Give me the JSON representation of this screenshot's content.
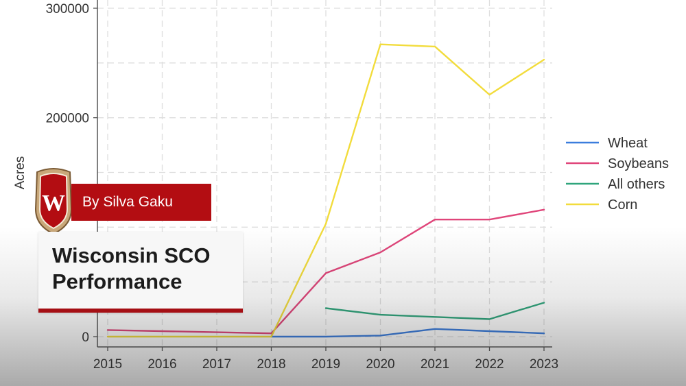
{
  "chart_data": {
    "type": "line",
    "x": [
      2015,
      2016,
      2017,
      2018,
      2019,
      2020,
      2021,
      2022,
      2023
    ],
    "xlabel": "",
    "ylabel": "Acres",
    "ylim": [
      0,
      300000
    ],
    "y_ticks": [
      0,
      200000,
      300000
    ],
    "grid": true,
    "legend_position": "right",
    "series": [
      {
        "name": "Wheat",
        "color": "#3b7ddd",
        "values": [
          null,
          null,
          null,
          0,
          0,
          1000,
          7000,
          5000,
          3000
        ]
      },
      {
        "name": "Soybeans",
        "color": "#e0457a",
        "values": [
          6000,
          null,
          null,
          3000,
          58000,
          77000,
          107000,
          107000,
          116000
        ]
      },
      {
        "name": "All others",
        "color": "#2fa57c",
        "values": [
          null,
          null,
          null,
          null,
          26000,
          20000,
          18000,
          16000,
          31000
        ]
      },
      {
        "name": "Corn",
        "color": "#f2dc3c",
        "values": [
          0,
          null,
          null,
          0,
          103000,
          267000,
          265000,
          221000,
          253000
        ]
      }
    ]
  },
  "overlay": {
    "byline": "By Silva Gaku",
    "title_lines": [
      "Wisconsin SCO",
      "Performance"
    ],
    "crest_icon": "uw-crest-icon",
    "crest_letter": "W",
    "accent_color": "#b30d12"
  }
}
